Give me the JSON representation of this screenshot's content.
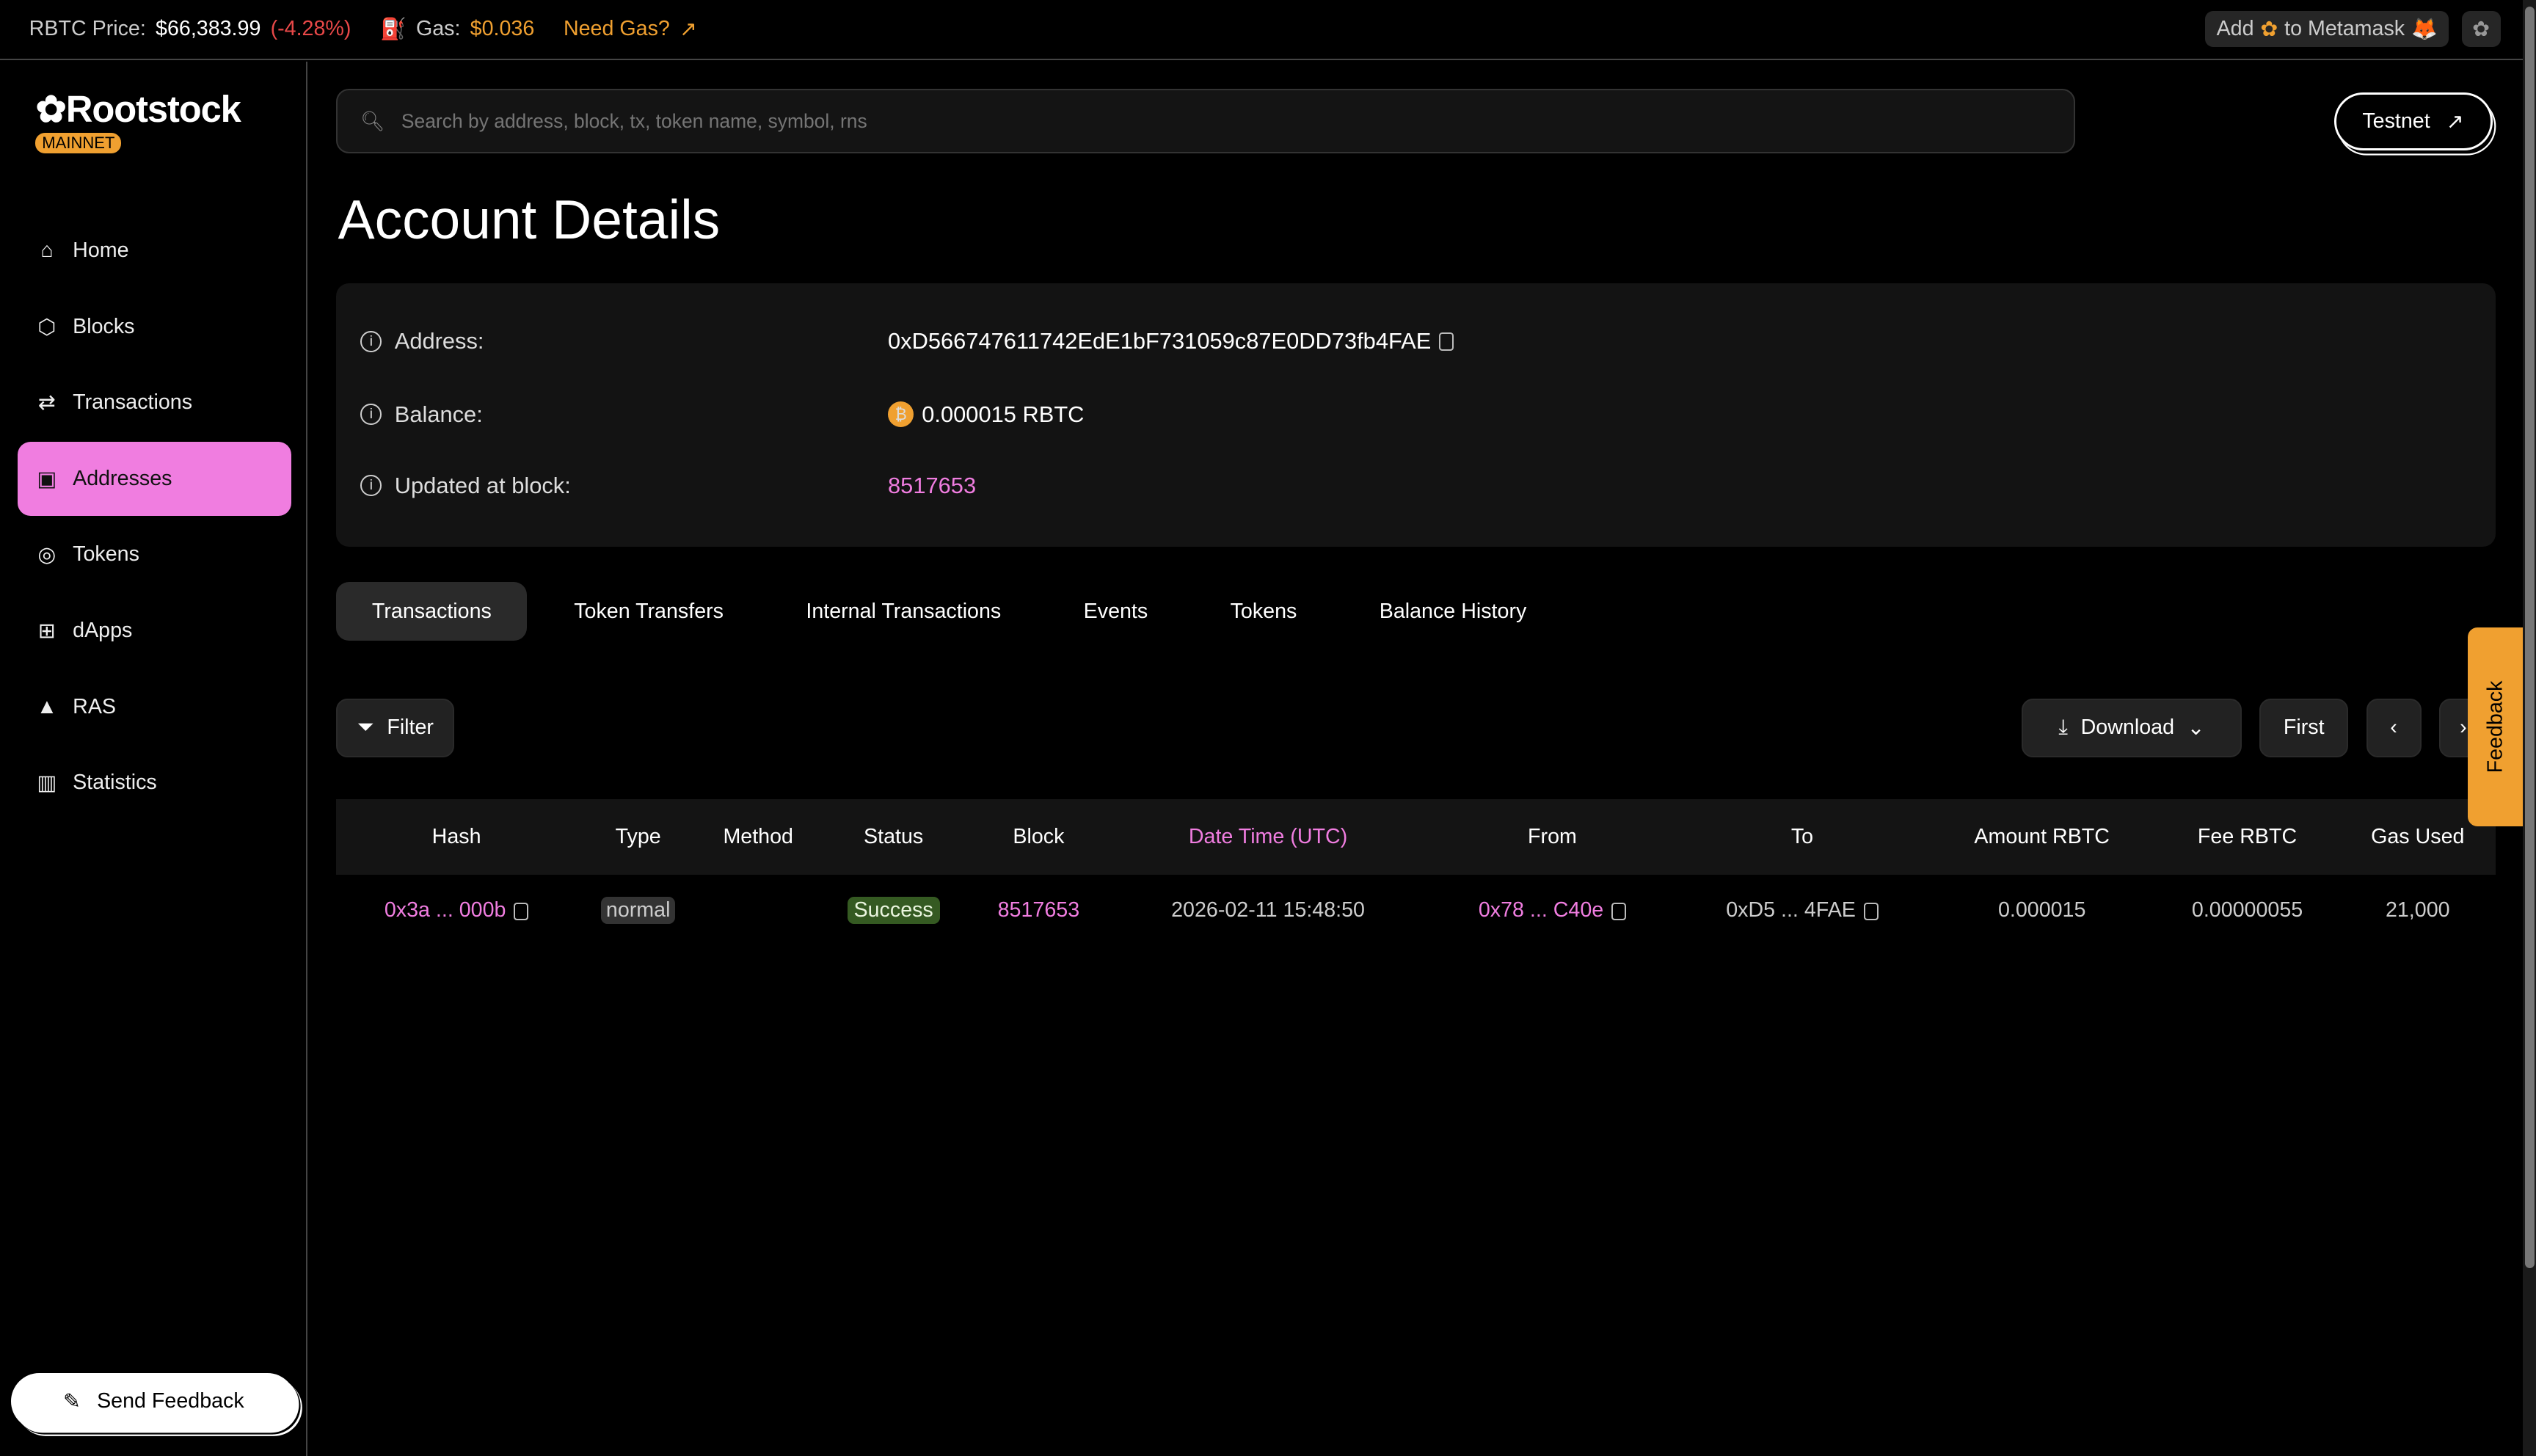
{
  "topbar": {
    "price_label": "RBTC Price:",
    "price": "$66,383.99",
    "change": "(-4.28%)",
    "gas_label": "Gas:",
    "gas": "$0.036",
    "need_gas": "Need Gas?",
    "add_pre": "Add",
    "add_post": "to Metamask"
  },
  "brand": {
    "name": "Rootstock",
    "network": "MAINNET"
  },
  "sidebar": {
    "items": [
      {
        "label": "Home",
        "icon": "home-icon"
      },
      {
        "label": "Blocks",
        "icon": "cube-icon"
      },
      {
        "label": "Transactions",
        "icon": "arrows-icon"
      },
      {
        "label": "Addresses",
        "icon": "contact-icon",
        "active": true
      },
      {
        "label": "Tokens",
        "icon": "coins-icon"
      },
      {
        "label": "dApps",
        "icon": "apps-icon"
      },
      {
        "label": "RAS",
        "icon": "triangle-icon"
      },
      {
        "label": "Statistics",
        "icon": "chart-icon"
      }
    ],
    "send_feedback": "Send Feedback"
  },
  "search": {
    "placeholder": "Search by address, block, tx, token name, symbol, rns"
  },
  "testnet": "Testnet",
  "page_title": "Account Details",
  "details": {
    "address_label": "Address:",
    "address": "0xD566747611742EdE1bF731059c87E0DD73fb4FAE",
    "balance_label": "Balance:",
    "balance": "0.000015 RBTC",
    "block_label": "Updated at block:",
    "block": "8517653"
  },
  "tabs": [
    "Transactions",
    "Token Transfers",
    "Internal Transactions",
    "Events",
    "Tokens",
    "Balance History"
  ],
  "toolbar": {
    "filter": "Filter",
    "download": "Download",
    "first": "First"
  },
  "table": {
    "headers": [
      "Hash",
      "Type",
      "Method",
      "Status",
      "Block",
      "Date Time (UTC)",
      "From",
      "To",
      "Amount RBTC",
      "Fee RBTC",
      "Gas Used"
    ],
    "rows": [
      {
        "hash": "0x3a ... 000b",
        "type": "normal",
        "method": "",
        "status": "Success",
        "block": "8517653",
        "datetime": "2026-02-11 15:48:50",
        "from": "0x78 ... C40e",
        "to": "0xD5 ... 4FAE",
        "amount": "0.000015",
        "fee": "0.00000055",
        "gas": "21,000"
      }
    ]
  },
  "feedback_tab": "Feedback",
  "colors": {
    "accent": "#f07de0",
    "orange": "#f0a030",
    "negative": "#e84848",
    "success_bg": "#355a22"
  }
}
